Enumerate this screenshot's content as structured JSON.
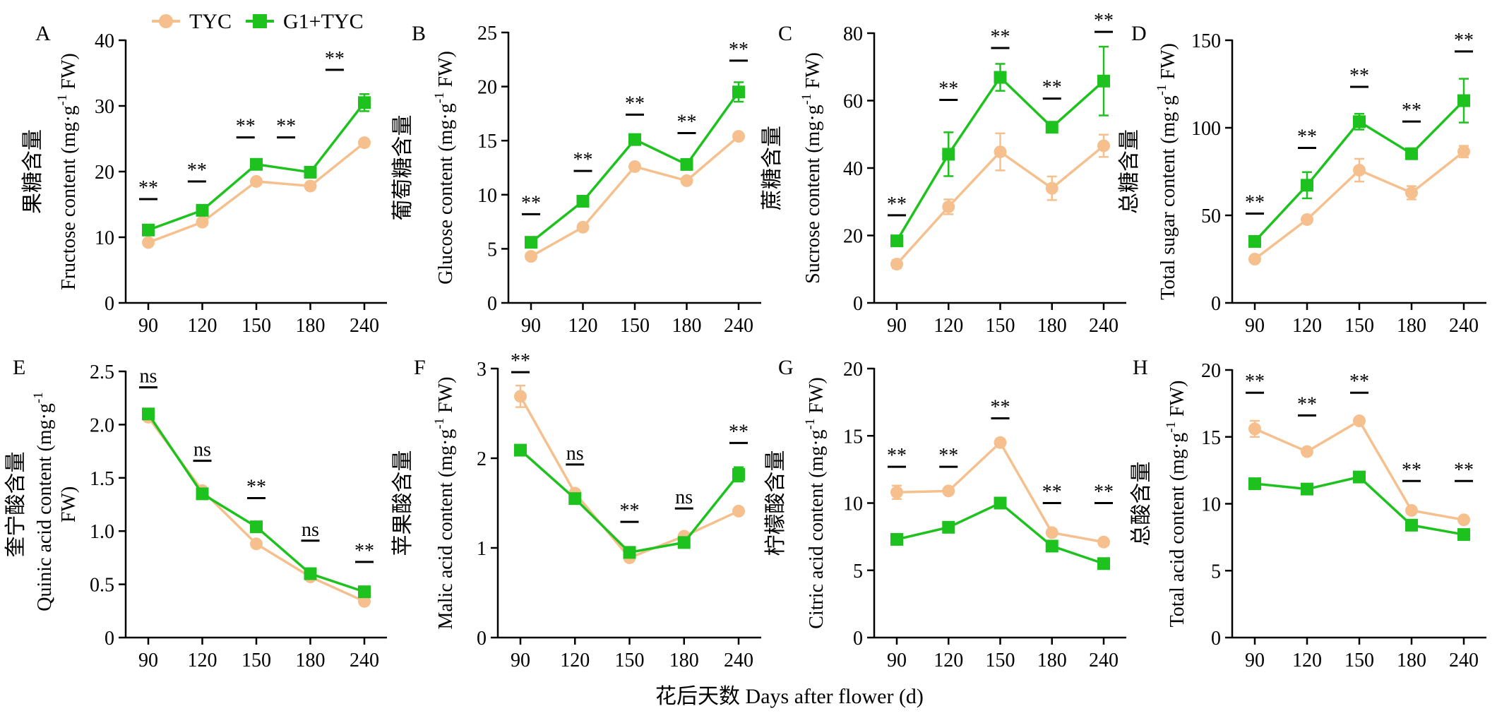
{
  "legend": {
    "series": [
      {
        "name": "TYC",
        "color": "#f6c08e",
        "marker": "circle"
      },
      {
        "name": "G1+TYC",
        "color": "#1ec21e",
        "marker": "square"
      }
    ]
  },
  "shared_xlabel": "花后天数 Days after flower (d)",
  "chart_data": [
    {
      "panel": "A",
      "type": "line",
      "ylabel_cn": "果糖含量",
      "ylabel_en": "Fructose content (mg·g",
      "ylabel_tail": " FW)",
      "ylim": [
        0,
        40
      ],
      "yticks": [
        0,
        10,
        20,
        30,
        40
      ],
      "ytick_labels": [
        "0",
        "10",
        "20",
        "30",
        "40"
      ],
      "categories": [
        "90",
        "120",
        "150",
        "180",
        "240"
      ],
      "series": [
        {
          "name": "TYC",
          "values": [
            9.2,
            12.3,
            18.5,
            17.8,
            24.4
          ],
          "errors": [
            0.3,
            0.4,
            0.3,
            0.3,
            0.4
          ]
        },
        {
          "name": "G1+TYC",
          "values": [
            11.1,
            14.1,
            21.1,
            19.9,
            30.5
          ],
          "errors": [
            0.4,
            0.4,
            0.4,
            0.3,
            1.3
          ]
        }
      ],
      "significance": [
        "**",
        "**",
        "**",
        "**",
        "**"
      ],
      "sig_positions": [
        0.0,
        0.9,
        1.8,
        2.55,
        3.45
      ],
      "sig_levels": [
        15.8,
        18.5,
        25.2,
        25.2,
        35.5
      ]
    },
    {
      "panel": "B",
      "type": "line",
      "ylabel_cn": "葡萄糖含量",
      "ylabel_en": "Glucose content (mg·g",
      "ylabel_tail": " FW)",
      "ylim": [
        0,
        25
      ],
      "yticks": [
        0,
        5,
        10,
        15,
        20,
        25
      ],
      "ytick_labels": [
        "0",
        "5",
        "10",
        "15",
        "20",
        "25"
      ],
      "categories": [
        "90",
        "120",
        "150",
        "180",
        "240"
      ],
      "series": [
        {
          "name": "TYC",
          "values": [
            4.3,
            7.0,
            12.6,
            11.3,
            15.4
          ],
          "errors": [
            0.2,
            0.2,
            0.2,
            0.2,
            0.2
          ]
        },
        {
          "name": "G1+TYC",
          "values": [
            5.6,
            9.4,
            15.1,
            12.8,
            19.5
          ],
          "errors": [
            0.2,
            0.5,
            0.3,
            0.2,
            0.9
          ]
        }
      ],
      "significance": [
        "**",
        "**",
        "**",
        "**",
        "**"
      ],
      "sig_positions": [
        0,
        1,
        2,
        3,
        4
      ],
      "sig_levels": [
        8.2,
        12.2,
        17.4,
        15.7,
        22.4
      ]
    },
    {
      "panel": "C",
      "type": "line",
      "ylabel_cn": "蔗糖含量",
      "ylabel_en": "Sucrose content (mg·g",
      "ylabel_tail": " FW)",
      "ylim": [
        0,
        80
      ],
      "yticks": [
        0,
        20,
        40,
        60,
        80
      ],
      "ytick_labels": [
        "0",
        "20",
        "40",
        "60",
        "80"
      ],
      "categories": [
        "90",
        "120",
        "150",
        "180",
        "240"
      ],
      "series": [
        {
          "name": "TYC",
          "values": [
            11.5,
            28.5,
            44.8,
            34.0,
            46.6
          ],
          "errors": [
            1.2,
            2.2,
            5.5,
            3.5,
            3.3
          ]
        },
        {
          "name": "G1+TYC",
          "values": [
            18.4,
            44.1,
            66.9,
            52.1,
            65.8
          ],
          "errors": [
            1.2,
            6.5,
            4.0,
            1.5,
            10.2
          ]
        }
      ],
      "significance": [
        "**",
        "**",
        "**",
        "**",
        "**"
      ],
      "sig_positions": [
        0,
        1,
        2,
        3,
        4
      ],
      "sig_levels": [
        26.0,
        60.2,
        75.6,
        60.6,
        80.4
      ]
    },
    {
      "panel": "D",
      "type": "line",
      "ylabel_cn": "总糖含量",
      "ylabel_en": "Total sugar content (mg·g",
      "ylabel_tail": " FW)",
      "ylim": [
        0,
        150
      ],
      "yticks": [
        0,
        50,
        100,
        150
      ],
      "ytick_labels": [
        "0",
        "50",
        "100",
        "150"
      ],
      "categories": [
        "90",
        "120",
        "150",
        "180",
        "240"
      ],
      "series": [
        {
          "name": "TYC",
          "values": [
            25.0,
            47.6,
            75.8,
            62.9,
            86.4
          ],
          "errors": [
            1.2,
            1.5,
            6.5,
            3.8,
            3.3
          ]
        },
        {
          "name": "G1+TYC",
          "values": [
            35.1,
            67.2,
            103.5,
            85.2,
            115.5
          ],
          "errors": [
            1.5,
            7.5,
            4.5,
            1.5,
            12.5
          ]
        }
      ],
      "significance": [
        "**",
        "**",
        "**",
        "**",
        "**"
      ],
      "sig_positions": [
        0,
        1,
        2,
        3,
        4
      ],
      "sig_levels": [
        51.0,
        88.5,
        123.4,
        103.6,
        143.6
      ]
    },
    {
      "panel": "E",
      "type": "line",
      "ylabel_cn": "奎宁酸含量",
      "ylabel_en": "Quinic acid content (mg·g",
      "ylabel_tail": "",
      "ylabel_line2": "FW)",
      "ylim": [
        0,
        2.5
      ],
      "yticks": [
        0,
        0.5,
        1.0,
        1.5,
        2.0,
        2.5
      ],
      "ytick_labels": [
        "0",
        "0.5",
        "1.0",
        "1.5",
        "2.0",
        "2.5"
      ],
      "categories": [
        "90",
        "120",
        "150",
        "180",
        "240"
      ],
      "series": [
        {
          "name": "TYC",
          "values": [
            2.07,
            1.38,
            0.88,
            0.57,
            0.34
          ],
          "errors": [
            0.03,
            0.02,
            0.02,
            0.02,
            0.02
          ]
        },
        {
          "name": "G1+TYC",
          "values": [
            2.1,
            1.35,
            1.04,
            0.6,
            0.43
          ],
          "errors": [
            0.04,
            0.02,
            0.02,
            0.02,
            0.02
          ]
        }
      ],
      "significance": [
        "ns",
        "ns",
        "**",
        "ns",
        "**"
      ],
      "sig_positions": [
        0,
        1,
        2,
        3,
        4
      ],
      "sig_levels": [
        2.35,
        1.66,
        1.31,
        0.91,
        0.71
      ]
    },
    {
      "panel": "F",
      "type": "line",
      "ylabel_cn": "苹果酸含量",
      "ylabel_en": "Malic  acid content (mg·g",
      "ylabel_tail": " FW)",
      "ylim": [
        0,
        3
      ],
      "yticks": [
        0,
        1,
        2,
        3
      ],
      "ytick_labels": [
        "0",
        "1",
        "2",
        "3"
      ],
      "categories": [
        "90",
        "120",
        "150",
        "180",
        "240"
      ],
      "series": [
        {
          "name": "TYC",
          "values": [
            2.69,
            1.61,
            0.89,
            1.13,
            1.41
          ],
          "errors": [
            0.12,
            0.03,
            0.03,
            0.03,
            0.03
          ]
        },
        {
          "name": "G1+TYC",
          "values": [
            2.09,
            1.55,
            0.95,
            1.06,
            1.82
          ],
          "errors": [
            0.04,
            0.03,
            0.04,
            0.03,
            0.08
          ]
        }
      ],
      "significance": [
        "**",
        "ns",
        "**",
        "ns",
        "**"
      ],
      "sig_positions": [
        0,
        1,
        2,
        3,
        4
      ],
      "sig_levels": [
        2.96,
        1.93,
        1.29,
        1.44,
        2.17
      ]
    },
    {
      "panel": "G",
      "type": "line",
      "ylabel_cn": "柠檬酸含量",
      "ylabel_en": "Citric acid content (mg·g",
      "ylabel_tail": " FW)",
      "ylim": [
        0,
        20
      ],
      "yticks": [
        0,
        5,
        10,
        15,
        20
      ],
      "ytick_labels": [
        "0",
        "5",
        "10",
        "15",
        "20"
      ],
      "categories": [
        "90",
        "120",
        "150",
        "180",
        "240"
      ],
      "series": [
        {
          "name": "TYC",
          "values": [
            10.8,
            10.9,
            14.5,
            7.8,
            7.1
          ],
          "errors": [
            0.5,
            0.2,
            0.2,
            0.2,
            0.2
          ]
        },
        {
          "name": "G1+TYC",
          "values": [
            7.3,
            8.2,
            10.0,
            6.8,
            5.5
          ],
          "errors": [
            0.2,
            0.2,
            0.2,
            0.2,
            0.2
          ]
        }
      ],
      "significance": [
        "**",
        "**",
        "**",
        "**",
        "**"
      ],
      "sig_positions": [
        0,
        1,
        2,
        3,
        4
      ],
      "sig_levels": [
        12.7,
        12.7,
        16.3,
        10.0,
        10.0
      ]
    },
    {
      "panel": "H",
      "type": "line",
      "ylabel_cn": "总酸含量",
      "ylabel_en": "Total acid content (mg·g",
      "ylabel_tail": " FW)",
      "ylim": [
        0,
        20
      ],
      "yticks": [
        0,
        5,
        10,
        15,
        20
      ],
      "ytick_labels": [
        "0",
        "5",
        "10",
        "15",
        "20"
      ],
      "categories": [
        "90",
        "120",
        "150",
        "180",
        "240"
      ],
      "series": [
        {
          "name": "TYC",
          "values": [
            15.6,
            13.9,
            16.2,
            9.5,
            8.8
          ],
          "errors": [
            0.6,
            0.2,
            0.2,
            0.2,
            0.2
          ]
        },
        {
          "name": "G1+TYC",
          "values": [
            11.5,
            11.1,
            12.0,
            8.4,
            7.7
          ],
          "errors": [
            0.2,
            0.2,
            0.2,
            0.2,
            0.2
          ]
        }
      ],
      "significance": [
        "**",
        "**",
        "**",
        "**",
        "**"
      ],
      "sig_positions": [
        0,
        1,
        2,
        3,
        4
      ],
      "sig_levels": [
        18.3,
        16.6,
        18.3,
        11.7,
        11.7
      ]
    }
  ]
}
